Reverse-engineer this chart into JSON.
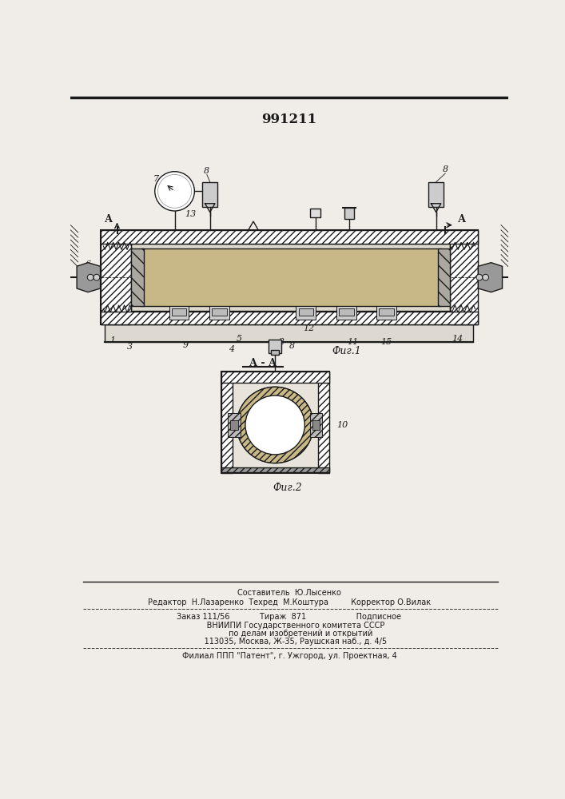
{
  "patent_number": "991211",
  "fig1_label": "Фиг.1",
  "fig2_label": "Фиг.2",
  "section_label": "А - А",
  "bg_color": "#f0ede8",
  "line_color": "#1a1a1a",
  "footer_line1": "Составитель  Ю.Лысенко",
  "footer_line2": "Редактор  Н.Лазаренко  Техред  М.Коштура         Корректор О.Вилак",
  "footer_line3": "Заказ 111/56            Тираж  871                    Подписное",
  "footer_line4": "     ВНИИПИ Государственного комитета СССР",
  "footer_line5": "         по делам изобретений и открытий",
  "footer_line6": "     113035, Москва, Ж-35, Раушская наб., д. 4/5",
  "footer_line7": "Филиал ППП \"Патент\", г. Ужгород, ул. Проектная, 4"
}
